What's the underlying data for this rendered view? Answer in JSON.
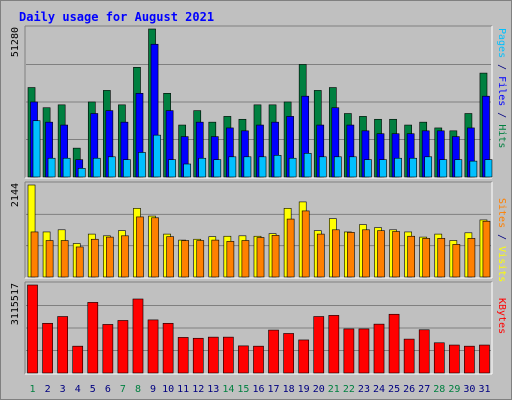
{
  "chart_data": {
    "type": "bar",
    "title": "Daily usage for August 2021",
    "categories": [
      "1",
      "2",
      "3",
      "4",
      "5",
      "6",
      "7",
      "8",
      "9",
      "10",
      "11",
      "12",
      "13",
      "14",
      "15",
      "16",
      "17",
      "18",
      "19",
      "20",
      "21",
      "22",
      "23",
      "24",
      "25",
      "26",
      "27",
      "28",
      "29",
      "30",
      "31"
    ],
    "weekend_days": [
      "1",
      "7",
      "8",
      "14",
      "15",
      "21",
      "22",
      "28",
      "29"
    ],
    "panels": [
      {
        "id": "top",
        "max_label": "51280",
        "ylim": [
          0,
          51280
        ],
        "legend": [
          {
            "text": "Pages",
            "color": "#00c0ff"
          },
          {
            "text": " / ",
            "color": "#000080"
          },
          {
            "text": "Files",
            "color": "#0000ff"
          },
          {
            "text": " / ",
            "color": "#000080"
          },
          {
            "text": "Hits",
            "color": "#008040"
          }
        ],
        "series": [
          {
            "name": "Hits",
            "color": "#008040",
            "values": [
              31000,
              24000,
              25000,
              10000,
              26000,
              30000,
              25000,
              38000,
              51280,
              29000,
              18000,
              23000,
              19000,
              21000,
              20000,
              25000,
              25000,
              26000,
              39000,
              30000,
              31000,
              22000,
              21000,
              20000,
              20000,
              18000,
              19000,
              17000,
              16000,
              22000,
              36000
            ]
          },
          {
            "name": "Files",
            "color": "#0000ff",
            "values": [
              26000,
              19000,
              18000,
              6000,
              22000,
              23000,
              19000,
              29000,
              46000,
              23000,
              14000,
              19000,
              14000,
              17000,
              16000,
              18000,
              19000,
              21000,
              28000,
              18000,
              24000,
              18000,
              16000,
              15000,
              15000,
              15000,
              16000,
              16000,
              14000,
              17000,
              28000
            ]
          },
          {
            "name": "Pages",
            "color": "#00c0ff",
            "values": [
              19500,
              6500,
              6500,
              3000,
              6500,
              7000,
              6000,
              8500,
              14500,
              6000,
              4500,
              6500,
              6000,
              7000,
              7000,
              7000,
              7500,
              6500,
              8200,
              7000,
              7000,
              7000,
              6000,
              6000,
              6500,
              6500,
              7000,
              6000,
              6000,
              5500,
              6000
            ]
          }
        ]
      },
      {
        "id": "middle",
        "max_label": "2144",
        "ylim": [
          0,
          2144
        ],
        "legend": [
          {
            "text": "Sites",
            "color": "#ff8000"
          },
          {
            "text": " / ",
            "color": "#000080"
          },
          {
            "text": "Visits",
            "color": "#ffff00"
          }
        ],
        "series": [
          {
            "name": "Visits",
            "color": "#ffff00",
            "values": [
              2144,
              1050,
              1100,
              780,
              1000,
              960,
              1080,
              1600,
              1420,
              1000,
              860,
              880,
              940,
              950,
              960,
              950,
              1010,
              1600,
              1750,
              1080,
              1360,
              1050,
              1220,
              1150,
              1100,
              1050,
              930,
              1000,
              850,
              1030,
              1330
            ]
          },
          {
            "name": "Sites",
            "color": "#ff8000",
            "values": [
              1050,
              850,
              850,
              700,
              880,
              930,
              960,
              1400,
              1380,
              940,
              850,
              850,
              860,
              830,
              850,
              920,
              970,
              1350,
              1540,
              1000,
              1100,
              1040,
              1100,
              1080,
              1060,
              950,
              900,
              900,
              760,
              900,
              1300
            ]
          }
        ]
      },
      {
        "id": "bottom",
        "max_label": "3115517",
        "ylim": [
          0,
          3115517
        ],
        "legend": [
          {
            "text": "KBytes",
            "color": "#ff0000"
          }
        ],
        "series": [
          {
            "name": "KBytes",
            "color": "#ff0000",
            "values": [
              3115517,
              1760000,
              2000000,
              950000,
              2500000,
              1720000,
              1860000,
              2620000,
              1880000,
              1760000,
              1260000,
              1230000,
              1270000,
              1270000,
              960000,
              950000,
              1520000,
              1400000,
              1170000,
              2000000,
              2040000,
              1560000,
              1560000,
              1730000,
              2080000,
              1200000,
              1530000,
              1070000,
              990000,
              950000,
              990000
            ]
          }
        ]
      }
    ]
  }
}
